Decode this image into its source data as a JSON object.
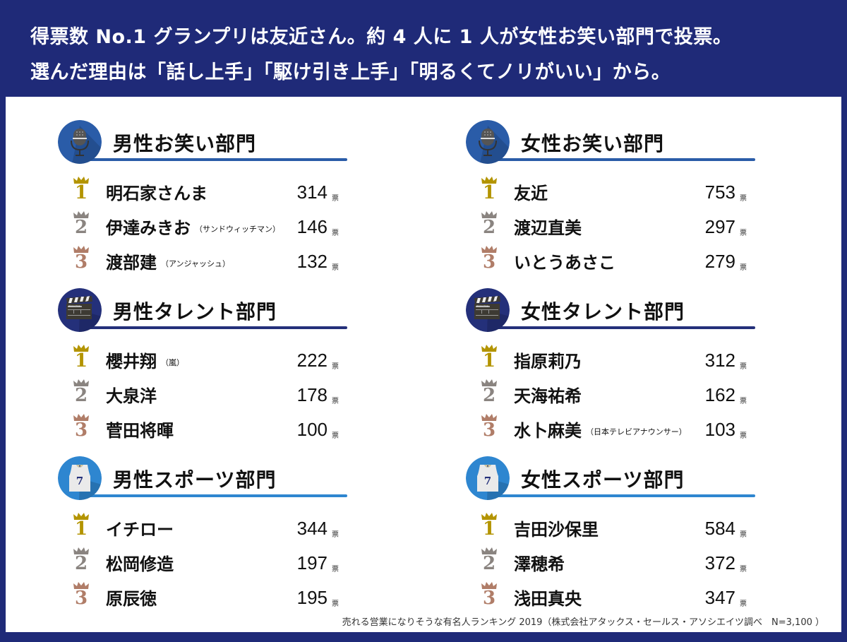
{
  "header": {
    "line1": "得票数 No.1 グランプリは友近さん。約 4 人に 1 人が女性お笑い部門で投票。",
    "line2": "選んだ理由は「話し上手」「駆け引き上手」「明るくてノリがいい」から。"
  },
  "colors": {
    "frame": "#1f2a78",
    "comedy": "#2a5ca8",
    "talent": "#24307a",
    "sports": "#2e86d0",
    "gold": "#b39400",
    "silver": "#8a8480",
    "bronze": "#b07d68"
  },
  "vote_unit": "票",
  "sections": [
    {
      "title": "男性お笑い部門",
      "icon": "microphone-icon",
      "entries": [
        {
          "rank": "1",
          "name": "明石家さんま",
          "note": "",
          "votes": "314"
        },
        {
          "rank": "2",
          "name": "伊達みきお",
          "note": "（サンドウィッチマン）",
          "votes": "146"
        },
        {
          "rank": "3",
          "name": "渡部建",
          "note": "（アンジャッシュ）",
          "votes": "132"
        }
      ]
    },
    {
      "title": "女性お笑い部門",
      "icon": "microphone-icon",
      "entries": [
        {
          "rank": "1",
          "name": "友近",
          "note": "",
          "votes": "753"
        },
        {
          "rank": "2",
          "name": "渡辺直美",
          "note": "",
          "votes": "297"
        },
        {
          "rank": "3",
          "name": "いとうあさこ",
          "note": "",
          "votes": "279"
        }
      ]
    },
    {
      "title": "男性タレント部門",
      "icon": "clapperboard-icon",
      "entries": [
        {
          "rank": "1",
          "name": "櫻井翔",
          "note": "（嵐）",
          "votes": "222"
        },
        {
          "rank": "2",
          "name": "大泉洋",
          "note": "",
          "votes": "178"
        },
        {
          "rank": "3",
          "name": "菅田将暉",
          "note": "",
          "votes": "100"
        }
      ]
    },
    {
      "title": "女性タレント部門",
      "icon": "clapperboard-icon",
      "entries": [
        {
          "rank": "1",
          "name": "指原莉乃",
          "note": "",
          "votes": "312"
        },
        {
          "rank": "2",
          "name": "天海祐希",
          "note": "",
          "votes": "162"
        },
        {
          "rank": "3",
          "name": "水卜麻美",
          "note": "（日本テレビアナウンサー）",
          "votes": "103"
        }
      ]
    },
    {
      "title": "男性スポーツ部門",
      "icon": "jersey-icon",
      "entries": [
        {
          "rank": "1",
          "name": "イチロー",
          "note": "",
          "votes": "344"
        },
        {
          "rank": "2",
          "name": "松岡修造",
          "note": "",
          "votes": "197"
        },
        {
          "rank": "3",
          "name": "原辰徳",
          "note": "",
          "votes": "195"
        }
      ]
    },
    {
      "title": "女性スポーツ部門",
      "icon": "jersey-icon",
      "entries": [
        {
          "rank": "1",
          "name": "吉田沙保里",
          "note": "",
          "votes": "584"
        },
        {
          "rank": "2",
          "name": "澤穂希",
          "note": "",
          "votes": "372"
        },
        {
          "rank": "3",
          "name": "浅田真央",
          "note": "",
          "votes": "347"
        }
      ]
    }
  ],
  "icons": {
    "jersey_number": "7",
    "clapper_label": "PRODUCTION"
  },
  "footer": "売れる営業になりそうな有名人ランキング 2019（株式会社アタックス・セールス・アソシエイツ調べ　N=3,100 ）"
}
